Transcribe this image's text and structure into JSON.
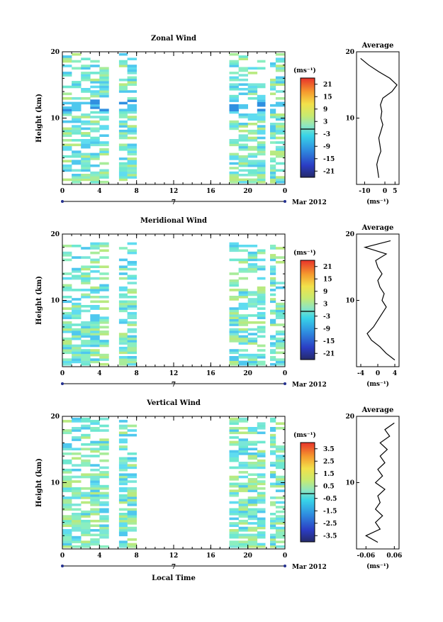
{
  "chart_data": [
    {
      "type": "heatmap",
      "title": "Zonal Wind",
      "ylabel": "Height (km)",
      "y_ticks": [
        "20",
        "10"
      ],
      "x_ticks": [
        "0",
        "4",
        "8",
        "12",
        "16",
        "20",
        "0"
      ],
      "ylim": [
        0,
        20
      ],
      "xlim": [
        0,
        24
      ],
      "day_label": "7",
      "month_label": "Mar 2012",
      "colorbar": {
        "unit": "(ms⁻¹)",
        "ticks": [
          "21",
          "15",
          "9",
          "3",
          "-3",
          "-9",
          "-15",
          "-21"
        ],
        "range": [
          -24,
          24
        ]
      },
      "data_gaps": [
        [
          5.4,
          6.1
        ],
        [
          8.3,
          17.7
        ],
        [
          21.9,
          22.4
        ]
      ],
      "average_profile": {
        "title": "Average",
        "xlabel": "(ms⁻¹)",
        "x_ticks": [
          "-10",
          "0",
          "5"
        ],
        "xlim": [
          -14,
          7
        ],
        "height_km": [
          1,
          2,
          3,
          4,
          5,
          6,
          7,
          8,
          9,
          10,
          11,
          12,
          13,
          14,
          15,
          16,
          17,
          18,
          19
        ],
        "speed": [
          -3.0,
          -3.5,
          -4.0,
          -3.2,
          -2.0,
          -2.5,
          -3.0,
          -2.0,
          -1.0,
          -2.0,
          -1.5,
          -2.2,
          -1.0,
          3.5,
          6.0,
          2.5,
          -3.0,
          -8.0,
          -12.0
        ]
      }
    },
    {
      "type": "heatmap",
      "title": "Meridional Wind",
      "ylabel": "Height (km)",
      "y_ticks": [
        "20",
        "10"
      ],
      "x_ticks": [
        "0",
        "4",
        "8",
        "12",
        "16",
        "20",
        "0"
      ],
      "ylim": [
        0,
        20
      ],
      "xlim": [
        0,
        24
      ],
      "day_label": "7",
      "month_label": "Mar 2012",
      "colorbar": {
        "unit": "(ms⁻¹)",
        "ticks": [
          "21",
          "15",
          "9",
          "3",
          "-3",
          "-9",
          "-15",
          "-21"
        ],
        "range": [
          -24,
          24
        ]
      },
      "data_gaps": [
        [
          5.4,
          6.1
        ],
        [
          8.3,
          17.7
        ],
        [
          21.9,
          22.4
        ]
      ],
      "average_profile": {
        "title": "Average",
        "xlabel": "(ms⁻¹)",
        "x_ticks": [
          "-4",
          "0",
          "4"
        ],
        "xlim": [
          -5,
          5
        ],
        "height_km": [
          1,
          2,
          3,
          4,
          5,
          6,
          7,
          8,
          9,
          10,
          11,
          12,
          13,
          14,
          15,
          16,
          17,
          18,
          19
        ],
        "speed": [
          4.0,
          2.0,
          0.5,
          -1.5,
          -2.5,
          -1.0,
          0.0,
          1.0,
          2.0,
          1.0,
          1.5,
          0.5,
          0.0,
          1.0,
          0.0,
          -0.5,
          2.0,
          -3.0,
          3.0
        ]
      }
    },
    {
      "type": "heatmap",
      "title": "Vertical Wind",
      "ylabel": "Height (km)",
      "xlabel": "Local Time",
      "y_ticks": [
        "20",
        "10"
      ],
      "x_ticks": [
        "0",
        "4",
        "8",
        "12",
        "16",
        "20",
        "0"
      ],
      "ylim": [
        0,
        20
      ],
      "xlim": [
        0,
        24
      ],
      "day_label": "7",
      "month_label": "Mar 2012",
      "colorbar": {
        "unit": "(ms⁻¹)",
        "ticks": [
          "3.5",
          "2.5",
          "1.5",
          "0.5",
          "-0.5",
          "-1.5",
          "-2.5",
          "-3.5"
        ],
        "range": [
          -4,
          4
        ]
      },
      "data_gaps": [
        [
          5.4,
          6.1
        ],
        [
          8.3,
          17.7
        ],
        [
          21.9,
          22.4
        ]
      ],
      "average_profile": {
        "title": "Average",
        "xlabel": "(ms⁻¹)",
        "x_ticks": [
          "-0.06",
          "0.06"
        ],
        "xlim": [
          -0.1,
          0.08
        ],
        "height_km": [
          1,
          2,
          3,
          4,
          5,
          6,
          7,
          8,
          9,
          10,
          11,
          12,
          13,
          14,
          15,
          16,
          17,
          18,
          19
        ],
        "speed": [
          -0.01,
          -0.06,
          0.0,
          -0.02,
          0.01,
          -0.02,
          0.0,
          -0.01,
          0.02,
          -0.02,
          0.01,
          -0.01,
          0.02,
          0.0,
          0.03,
          0.0,
          0.04,
          0.02,
          0.06
        ]
      }
    }
  ]
}
